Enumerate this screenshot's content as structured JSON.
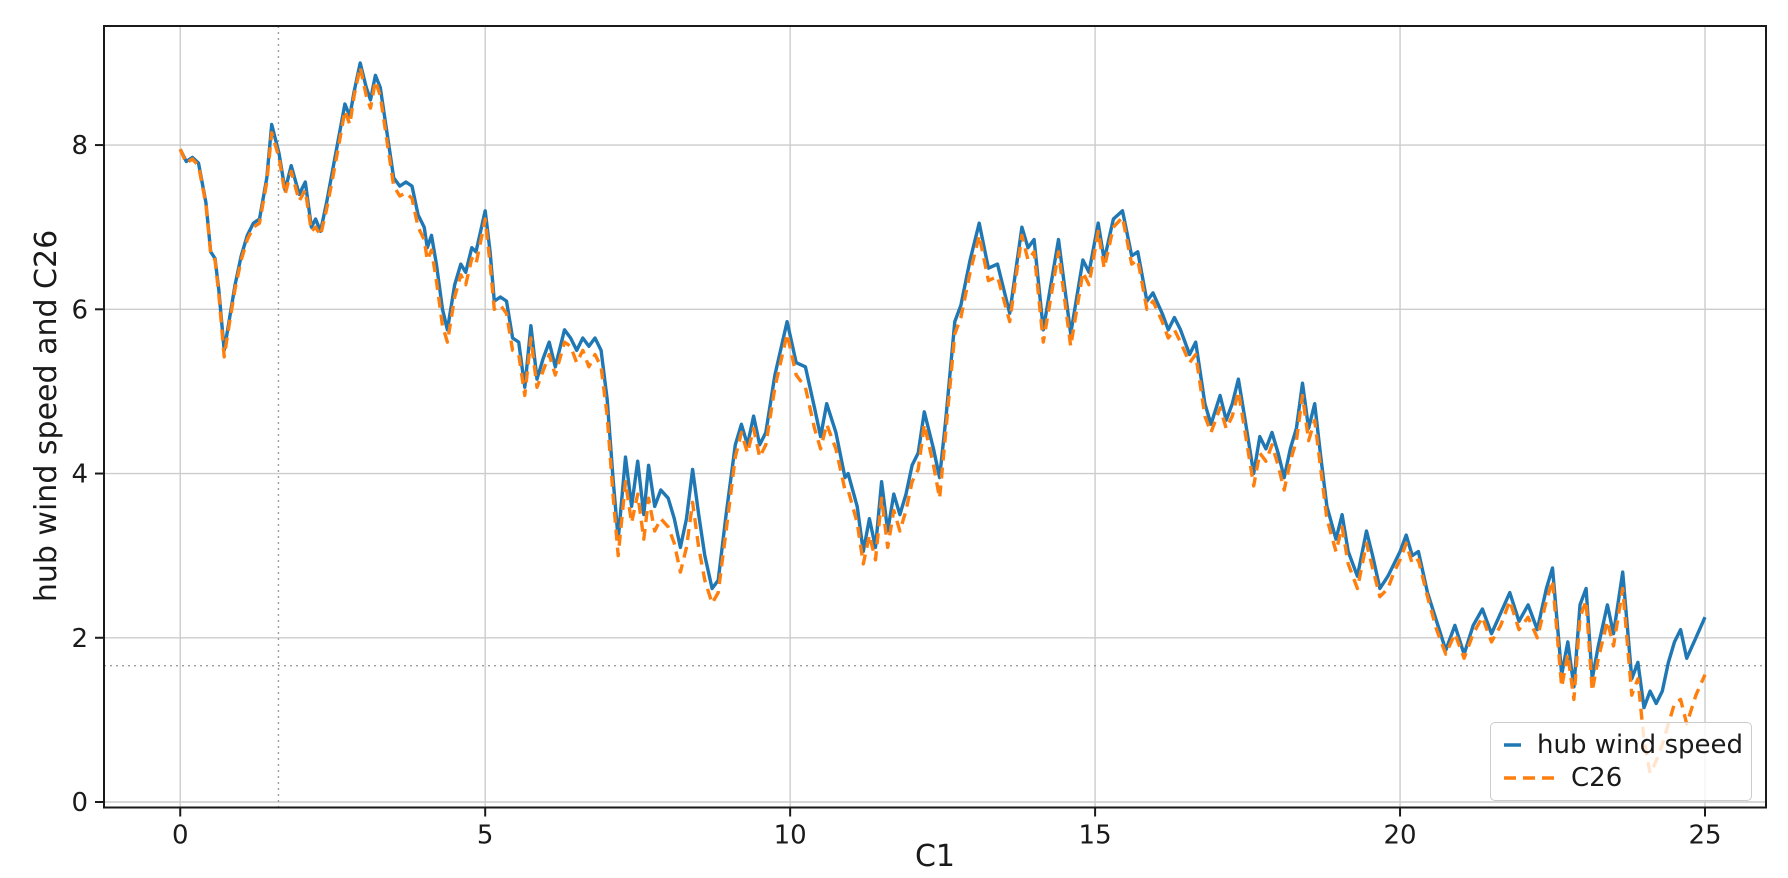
{
  "figure": {
    "background": "#ffffff",
    "text_color": "#1a1a1a",
    "spine_color": "#1a1a1a",
    "grid_color": "#cccccc",
    "crosshair_color": "#9e9e9e"
  },
  "chart_data": {
    "type": "line",
    "title": "",
    "xlabel": "C1",
    "ylabel": "hub wind speed and C26",
    "xlim": [
      -1.25,
      26.0
    ],
    "ylim": [
      -0.067,
      9.45
    ],
    "x_ticks": [
      0,
      5,
      10,
      15,
      20,
      25
    ],
    "y_ticks": [
      0,
      2,
      4,
      6,
      8
    ],
    "grid": {
      "which": "major",
      "style": "solid"
    },
    "crosshair": {
      "x": 1.61,
      "y": 1.66,
      "style": "dotted"
    },
    "legend": {
      "location": "lower right",
      "entries": [
        "hub wind speed",
        "C26"
      ]
    },
    "x": [
      0,
      0.1,
      0.2,
      0.3,
      0.42,
      0.5,
      0.57,
      0.63,
      0.72,
      0.8,
      0.9,
      1.0,
      1.1,
      1.2,
      1.3,
      1.42,
      1.5,
      1.62,
      1.72,
      1.82,
      1.95,
      2.05,
      2.15,
      2.22,
      2.3,
      2.4,
      2.5,
      2.6,
      2.7,
      2.78,
      2.85,
      2.95,
      3.05,
      3.12,
      3.2,
      3.28,
      3.4,
      3.5,
      3.6,
      3.7,
      3.8,
      3.9,
      4.0,
      4.05,
      4.12,
      4.2,
      4.3,
      4.38,
      4.5,
      4.6,
      4.68,
      4.78,
      4.85,
      5.0,
      5.08,
      5.15,
      5.25,
      5.35,
      5.45,
      5.55,
      5.65,
      5.75,
      5.85,
      5.95,
      6.05,
      6.15,
      6.3,
      6.4,
      6.5,
      6.6,
      6.7,
      6.8,
      6.9,
      7.0,
      7.1,
      7.18,
      7.3,
      7.4,
      7.5,
      7.6,
      7.68,
      7.78,
      7.88,
      8.0,
      8.1,
      8.2,
      8.3,
      8.4,
      8.5,
      8.6,
      8.72,
      8.82,
      8.95,
      9.1,
      9.2,
      9.3,
      9.4,
      9.5,
      9.6,
      9.75,
      9.95,
      10.1,
      10.25,
      10.4,
      10.5,
      10.6,
      10.75,
      10.9,
      10.95,
      11.1,
      11.2,
      11.3,
      11.4,
      11.5,
      11.6,
      11.7,
      11.8,
      11.9,
      12.0,
      12.1,
      12.2,
      12.35,
      12.45,
      12.55,
      12.7,
      12.8,
      12.95,
      13.1,
      13.25,
      13.4,
      13.6,
      13.8,
      13.9,
      14.0,
      14.15,
      14.4,
      14.6,
      14.8,
      14.9,
      15.05,
      15.15,
      15.3,
      15.45,
      15.6,
      15.7,
      15.85,
      15.95,
      16.1,
      16.2,
      16.3,
      16.4,
      16.55,
      16.65,
      16.8,
      16.9,
      17.05,
      17.15,
      17.25,
      17.35,
      17.45,
      17.6,
      17.7,
      17.8,
      17.9,
      18.0,
      18.1,
      18.2,
      18.3,
      18.4,
      18.5,
      18.6,
      18.7,
      18.8,
      18.95,
      19.05,
      19.15,
      19.3,
      19.45,
      19.55,
      19.67,
      19.8,
      19.9,
      20.0,
      20.1,
      20.2,
      20.3,
      20.45,
      20.6,
      20.75,
      20.9,
      21.05,
      21.2,
      21.35,
      21.5,
      21.65,
      21.8,
      21.95,
      22.1,
      22.25,
      22.4,
      22.5,
      22.65,
      22.75,
      22.85,
      22.95,
      23.05,
      23.15,
      23.25,
      23.4,
      23.5,
      23.65,
      23.8,
      23.9,
      24.0,
      24.1,
      24.2,
      24.3,
      24.4,
      24.5,
      24.6,
      24.7,
      24.85,
      25.0
    ],
    "series": [
      {
        "name": "hub wind speed",
        "color": "#1f77b4",
        "line_style": "solid",
        "values": [
          7.95,
          7.8,
          7.85,
          7.78,
          7.3,
          6.7,
          6.62,
          6.25,
          5.5,
          5.85,
          6.3,
          6.65,
          6.9,
          7.05,
          7.1,
          7.6,
          8.25,
          7.9,
          7.45,
          7.75,
          7.4,
          7.55,
          7.0,
          7.1,
          6.95,
          7.3,
          7.7,
          8.1,
          8.5,
          8.35,
          8.65,
          9.0,
          8.7,
          8.55,
          8.85,
          8.7,
          8.1,
          7.6,
          7.5,
          7.55,
          7.5,
          7.15,
          7.0,
          6.75,
          6.9,
          6.55,
          6.0,
          5.75,
          6.3,
          6.55,
          6.45,
          6.75,
          6.7,
          7.2,
          6.7,
          6.1,
          6.15,
          6.1,
          5.65,
          5.6,
          5.05,
          5.8,
          5.15,
          5.4,
          5.6,
          5.3,
          5.75,
          5.65,
          5.5,
          5.65,
          5.55,
          5.65,
          5.5,
          4.9,
          3.9,
          3.2,
          4.2,
          3.6,
          4.15,
          3.5,
          4.1,
          3.6,
          3.8,
          3.7,
          3.45,
          3.1,
          3.45,
          4.05,
          3.5,
          3.0,
          2.6,
          2.7,
          3.5,
          4.35,
          4.6,
          4.35,
          4.7,
          4.35,
          4.5,
          5.2,
          5.85,
          5.35,
          5.3,
          4.8,
          4.45,
          4.85,
          4.5,
          3.95,
          4.0,
          3.6,
          3.05,
          3.45,
          3.1,
          3.9,
          3.3,
          3.75,
          3.5,
          3.75,
          4.1,
          4.25,
          4.75,
          4.3,
          3.95,
          4.65,
          5.85,
          6.05,
          6.6,
          7.05,
          6.5,
          6.55,
          5.95,
          7.0,
          6.75,
          6.85,
          5.75,
          6.85,
          5.7,
          6.6,
          6.45,
          7.05,
          6.6,
          7.1,
          7.2,
          6.65,
          6.7,
          6.1,
          6.2,
          5.95,
          5.75,
          5.9,
          5.75,
          5.45,
          5.6,
          4.85,
          4.6,
          4.95,
          4.65,
          4.85,
          5.15,
          4.7,
          4.0,
          4.45,
          4.3,
          4.5,
          4.25,
          3.95,
          4.3,
          4.55,
          5.1,
          4.55,
          4.85,
          4.2,
          3.6,
          3.2,
          3.5,
          3.05,
          2.75,
          3.3,
          3.0,
          2.6,
          2.75,
          2.9,
          3.05,
          3.25,
          3.0,
          3.05,
          2.55,
          2.2,
          1.85,
          2.15,
          1.8,
          2.15,
          2.35,
          2.05,
          2.3,
          2.55,
          2.2,
          2.4,
          2.1,
          2.6,
          2.85,
          1.55,
          1.95,
          1.4,
          2.4,
          2.6,
          1.5,
          1.9,
          2.4,
          2.05,
          2.8,
          1.5,
          1.7,
          1.15,
          1.35,
          1.2,
          1.35,
          1.7,
          1.95,
          2.1,
          1.75,
          2.0,
          2.25
        ]
      },
      {
        "name": "C26",
        "color": "#ff7f0e",
        "line_style": "dashed",
        "values": [
          7.95,
          7.78,
          7.83,
          7.75,
          7.28,
          6.68,
          6.6,
          6.2,
          5.42,
          5.8,
          6.25,
          6.6,
          6.85,
          7.0,
          7.05,
          7.55,
          8.15,
          7.85,
          7.4,
          7.68,
          7.32,
          7.45,
          6.95,
          7.0,
          6.9,
          7.22,
          7.6,
          8.0,
          8.42,
          8.25,
          8.6,
          8.95,
          8.6,
          8.45,
          8.78,
          8.6,
          8.0,
          7.5,
          7.38,
          7.42,
          7.35,
          7.0,
          6.85,
          6.6,
          6.72,
          6.35,
          5.8,
          5.6,
          6.15,
          6.42,
          6.3,
          6.62,
          6.55,
          7.1,
          6.55,
          6.0,
          6.05,
          5.95,
          5.5,
          5.45,
          4.95,
          5.65,
          5.05,
          5.25,
          5.45,
          5.2,
          5.6,
          5.55,
          5.35,
          5.5,
          5.3,
          5.45,
          5.3,
          4.7,
          3.7,
          3.0,
          3.9,
          3.4,
          3.75,
          3.2,
          3.7,
          3.3,
          3.45,
          3.35,
          3.15,
          2.8,
          3.1,
          3.65,
          3.1,
          2.7,
          2.42,
          2.55,
          3.3,
          4.2,
          4.5,
          4.25,
          4.55,
          4.2,
          4.35,
          5.05,
          5.7,
          5.2,
          5.05,
          4.55,
          4.3,
          4.6,
          4.3,
          3.8,
          3.8,
          3.4,
          2.9,
          3.25,
          2.95,
          3.7,
          3.1,
          3.55,
          3.3,
          3.55,
          3.9,
          4.05,
          4.6,
          4.1,
          3.7,
          4.5,
          5.7,
          5.9,
          6.45,
          6.9,
          6.35,
          6.4,
          5.85,
          6.9,
          6.6,
          6.7,
          5.6,
          6.7,
          5.55,
          6.45,
          6.3,
          6.95,
          6.5,
          7.0,
          7.12,
          6.55,
          6.6,
          6.0,
          6.1,
          5.85,
          5.65,
          5.75,
          5.6,
          5.35,
          5.45,
          4.7,
          4.5,
          4.8,
          4.55,
          4.7,
          5.0,
          4.55,
          3.85,
          4.25,
          4.15,
          4.35,
          4.1,
          3.8,
          4.15,
          4.4,
          4.95,
          4.4,
          4.65,
          4.05,
          3.45,
          3.05,
          3.35,
          2.9,
          2.6,
          3.15,
          2.85,
          2.5,
          2.6,
          2.8,
          2.95,
          3.15,
          2.9,
          2.95,
          2.5,
          2.1,
          1.8,
          2.05,
          1.75,
          2.05,
          2.25,
          1.95,
          2.15,
          2.45,
          2.1,
          2.25,
          2.0,
          2.45,
          2.7,
          1.4,
          1.8,
          1.25,
          2.25,
          2.45,
          1.35,
          1.75,
          2.2,
          1.9,
          2.6,
          1.3,
          1.5,
          0.75,
          0.35,
          0.5,
          0.7,
          0.95,
          1.2,
          1.25,
          0.95,
          1.3,
          1.55
        ]
      }
    ]
  }
}
